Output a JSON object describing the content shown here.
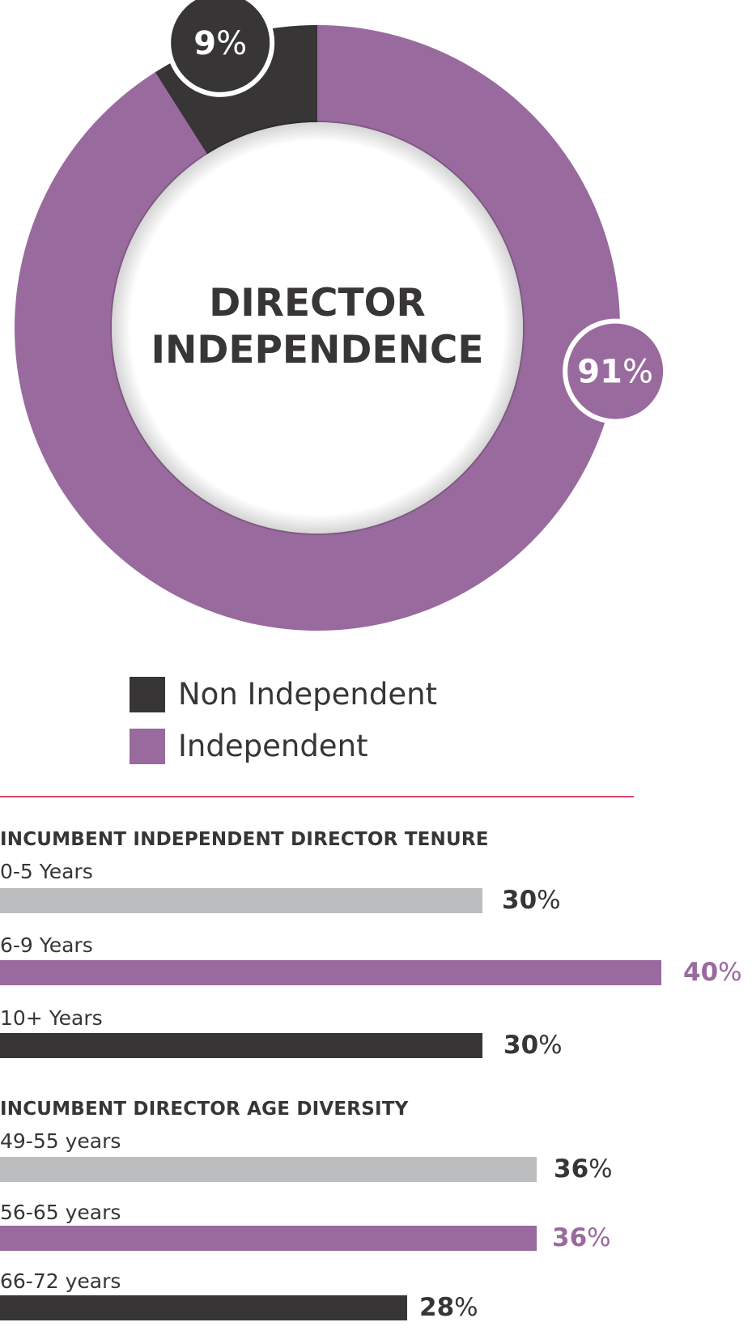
{
  "colors": {
    "independent": "#996a9e",
    "non_independent": "#373536",
    "light_bar": "#bcbdbf",
    "divider": "#d9476a",
    "text": "#373536"
  },
  "chart_data": [
    {
      "type": "pie",
      "title": "DIRECTOR INDEPENDENCE",
      "title_lines": [
        "DIRECTOR",
        "INDEPENDENCE"
      ],
      "slices": [
        {
          "label": "Non Independent",
          "value": 9,
          "display": "9",
          "unit": "%",
          "color": "#373536"
        },
        {
          "label": "Independent",
          "value": 91,
          "display": "91",
          "unit": "%",
          "color": "#996a9e"
        }
      ],
      "legend": [
        {
          "label": "Non Independent",
          "color": "#373536"
        },
        {
          "label": "Independent",
          "color": "#996a9e"
        }
      ],
      "legend_placement": "bottom"
    },
    {
      "type": "bar",
      "orientation": "horizontal",
      "title": "INCUMBENT INDEPENDENT DIRECTOR TENURE",
      "categories": [
        "0-5 Years",
        "6-9 Years",
        "10+ Years"
      ],
      "values": [
        30,
        40,
        30
      ],
      "display": [
        "30",
        "40",
        "30"
      ],
      "unit": "%",
      "bar_colors": [
        "#bcbdbf",
        "#996a9e",
        "#373536"
      ],
      "label_colors": [
        "#373536",
        "#996a9e",
        "#373536"
      ]
    },
    {
      "type": "bar",
      "orientation": "horizontal",
      "title": "INCUMBENT DIRECTOR AGE DIVERSITY",
      "categories": [
        "49-55 years",
        "56-65 years",
        "66-72 years"
      ],
      "values": [
        36,
        36,
        28
      ],
      "display": [
        "36",
        "36",
        "28"
      ],
      "unit": "%",
      "bar_colors": [
        "#bcbdbf",
        "#996a9e",
        "#373536"
      ],
      "label_colors": [
        "#373536",
        "#996a9e",
        "#373536"
      ]
    }
  ]
}
